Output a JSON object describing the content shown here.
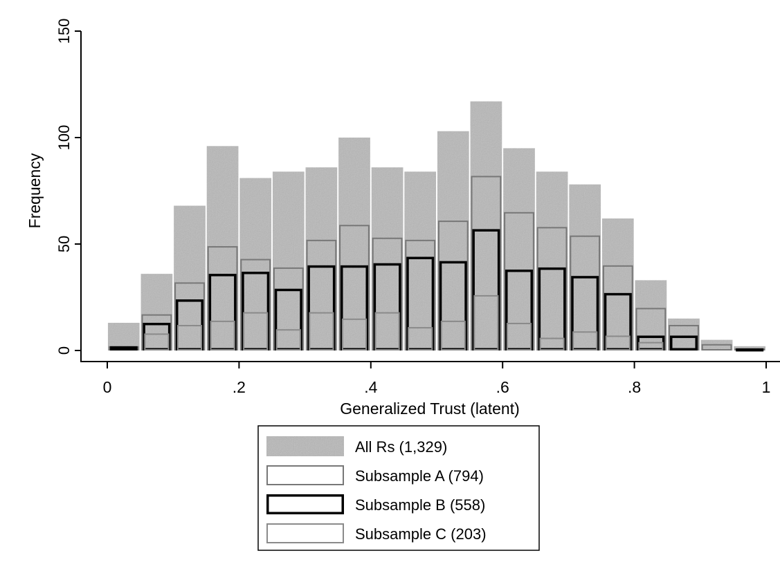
{
  "chart_data": {
    "type": "bar",
    "subtype": "overlaid histogram",
    "xlabel": "Generalized Trust (latent)",
    "ylabel": "Frequency",
    "xlim": [
      0,
      1
    ],
    "ylim": [
      0,
      150
    ],
    "xticks": [
      0,
      0.2,
      0.4,
      0.6,
      0.8,
      1
    ],
    "xtick_labels": [
      "0",
      ".2",
      ".4",
      ".6",
      ".8",
      "1"
    ],
    "yticks": [
      0,
      50,
      100,
      150
    ],
    "ytick_labels": [
      "0",
      "50",
      "100",
      "150"
    ],
    "bin_width": 0.05,
    "bin_centers": [
      0.025,
      0.075,
      0.125,
      0.175,
      0.225,
      0.275,
      0.325,
      0.375,
      0.425,
      0.475,
      0.525,
      0.575,
      0.625,
      0.675,
      0.725,
      0.775,
      0.825,
      0.875,
      0.925,
      0.975
    ],
    "grid": false,
    "legend_position": "bottom",
    "series": [
      {
        "name": "All Rs (1,329)",
        "style": "fill",
        "color": "#b8b8b8",
        "values": [
          13,
          36,
          68,
          96,
          81,
          84,
          86,
          100,
          86,
          84,
          103,
          117,
          95,
          84,
          78,
          62,
          33,
          15,
          5,
          2
        ]
      },
      {
        "name": "Subsample A (794)",
        "style": "outline",
        "color": "#777777",
        "values": [
          2,
          17,
          32,
          49,
          43,
          39,
          52,
          59,
          53,
          52,
          61,
          82,
          65,
          58,
          54,
          40,
          20,
          12,
          3,
          1
        ]
      },
      {
        "name": "Subsample B (558)",
        "style": "outline",
        "color": "#000000",
        "values": [
          2,
          13,
          24,
          36,
          37,
          29,
          40,
          40,
          41,
          44,
          42,
          57,
          38,
          39,
          35,
          27,
          7,
          7,
          0,
          1
        ]
      },
      {
        "name": "Subsample C (203)",
        "style": "outline",
        "color": "#8a8a8a",
        "values": [
          0,
          8,
          12,
          14,
          18,
          10,
          18,
          15,
          18,
          11,
          14,
          26,
          13,
          6,
          9,
          7,
          4,
          0,
          0,
          0
        ]
      }
    ]
  }
}
